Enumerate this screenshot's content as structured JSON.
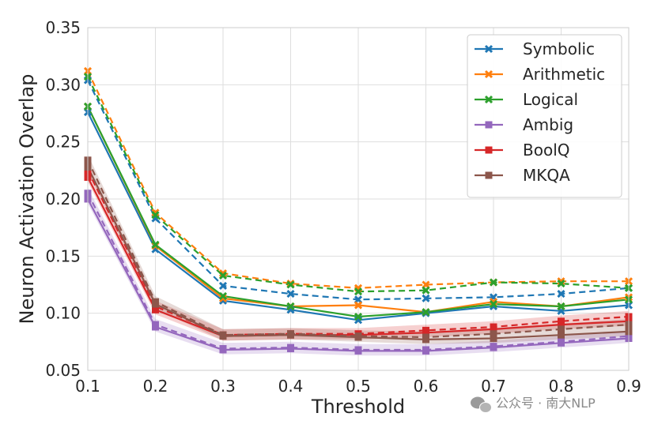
{
  "chart_data": {
    "type": "line",
    "xlabel": "Threshold",
    "ylabel": "Neuron Activation Overlap",
    "xlim": [
      0.1,
      0.9
    ],
    "ylim": [
      0.05,
      0.35
    ],
    "x_ticks": [
      "0.1",
      "0.2",
      "0.3",
      "0.4",
      "0.5",
      "0.6",
      "0.7",
      "0.8",
      "0.9"
    ],
    "y_ticks": [
      "0.05",
      "0.10",
      "0.15",
      "0.20",
      "0.25",
      "0.30",
      "0.35"
    ],
    "grid": true,
    "legend_position": "top-right",
    "x": [
      0.1,
      0.2,
      0.3,
      0.4,
      0.5,
      0.6,
      0.7,
      0.8,
      0.9
    ],
    "series": [
      {
        "name": "Symbolic",
        "color": "#1f77b4",
        "marker": "x",
        "band": false,
        "solid": [
          0.276,
          0.156,
          0.111,
          0.103,
          0.094,
          0.1,
          0.106,
          0.102,
          0.107
        ],
        "dashed": [
          0.304,
          0.183,
          0.124,
          0.117,
          0.112,
          0.113,
          0.114,
          0.117,
          0.122
        ]
      },
      {
        "name": "Arithmetic",
        "color": "#ff7f0e",
        "marker": "x",
        "band": false,
        "solid": [
          0.281,
          0.159,
          0.113,
          0.106,
          0.107,
          0.101,
          0.11,
          0.106,
          0.114
        ],
        "dashed": [
          0.312,
          0.188,
          0.135,
          0.126,
          0.122,
          0.125,
          0.127,
          0.128,
          0.128
        ]
      },
      {
        "name": "Logical",
        "color": "#2ca02c",
        "marker": "x",
        "band": false,
        "solid": [
          0.281,
          0.16,
          0.115,
          0.106,
          0.097,
          0.101,
          0.108,
          0.106,
          0.112
        ],
        "dashed": [
          0.307,
          0.186,
          0.133,
          0.125,
          0.119,
          0.12,
          0.127,
          0.126,
          0.122
        ]
      },
      {
        "name": "Ambig",
        "color": "#9467bd",
        "marker": "s",
        "band": true,
        "solid": [
          0.2,
          0.088,
          0.068,
          0.069,
          0.067,
          0.067,
          0.07,
          0.074,
          0.078
        ],
        "dashed": [
          0.205,
          0.09,
          0.069,
          0.07,
          0.068,
          0.068,
          0.071,
          0.075,
          0.08
        ]
      },
      {
        "name": "BoolQ",
        "color": "#d62728",
        "marker": "s",
        "band": true,
        "solid": [
          0.219,
          0.103,
          0.08,
          0.081,
          0.081,
          0.083,
          0.086,
          0.09,
          0.093
        ],
        "dashed": [
          0.225,
          0.106,
          0.081,
          0.082,
          0.082,
          0.085,
          0.088,
          0.093,
          0.097
        ]
      },
      {
        "name": "MKQA",
        "color": "#8c564b",
        "marker": "s",
        "band": true,
        "solid": [
          0.228,
          0.108,
          0.08,
          0.081,
          0.079,
          0.077,
          0.078,
          0.081,
          0.084
        ],
        "dashed": [
          0.234,
          0.11,
          0.081,
          0.082,
          0.08,
          0.079,
          0.082,
          0.086,
          0.09
        ]
      }
    ]
  },
  "watermark": "公众号 · 南大NLP"
}
